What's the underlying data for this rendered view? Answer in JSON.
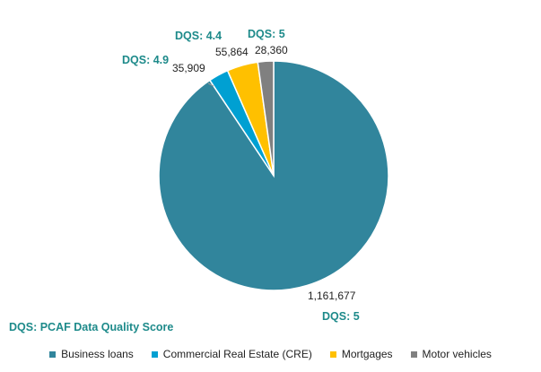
{
  "chart_data": {
    "type": "pie",
    "categories": [
      "Business loans",
      "Commercial Real Estate (CRE)",
      "Mortgages",
      "Motor vehicles"
    ],
    "values": [
      1161677,
      35909,
      55864,
      28360
    ],
    "value_labels": [
      "1,161,677",
      "35,909",
      "55,864",
      "28,360"
    ],
    "dqs_labels": [
      "DQS: 5",
      "DQS: 4.9",
      "DQS: 4.4",
      "DQS: 5"
    ],
    "colors": [
      "#31859c",
      "#00a0d2",
      "#ffc000",
      "#808080"
    ],
    "footnote": "DQS: PCAF Data Quality Score",
    "legend_position": "bottom"
  }
}
